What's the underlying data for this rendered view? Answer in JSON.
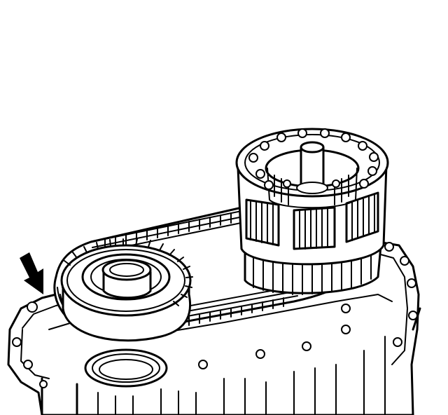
{
  "diagram": {
    "colors": {
      "line": "#000000",
      "background": "#ffffff"
    },
    "parts": [
      {
        "id": "case",
        "icon": "transfer-case-housing"
      },
      {
        "id": "chain",
        "icon": "drive-chain"
      },
      {
        "id": "front-sprocket",
        "icon": "front-output-sprocket"
      },
      {
        "id": "main-shaft",
        "icon": "mainshaft-drive-sprocket"
      },
      {
        "id": "gasket-surface",
        "icon": "case-mating-surface"
      }
    ],
    "callout": {
      "icon": "arrow-indicator",
      "target": "gasket-surface"
    }
  }
}
